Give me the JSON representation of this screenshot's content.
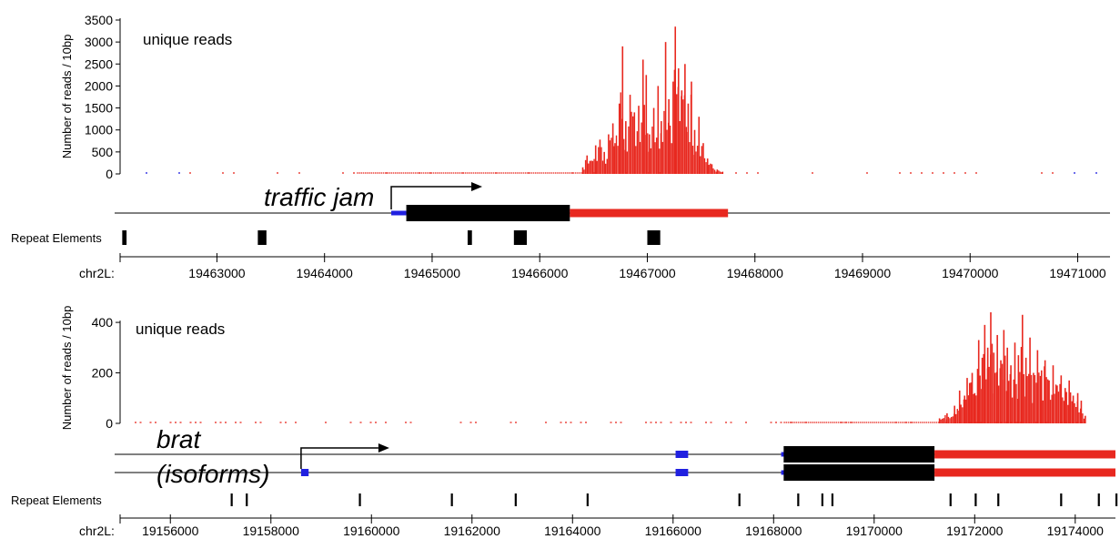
{
  "chart_data": [
    {
      "type": "bar",
      "panel_label": "unique reads",
      "ylabel": "Number of reads / 10bp",
      "yticks": [
        0,
        500,
        1000,
        1500,
        2000,
        2500,
        3000,
        3500
      ],
      "ylim": [
        0,
        3500
      ],
      "xlim": [
        19462100,
        19471300
      ],
      "xticks": [
        19463000,
        19464000,
        19465000,
        19466000,
        19467000,
        19468000,
        19469000,
        19470000,
        19471000
      ],
      "chrom_label": "chr2L:",
      "repeat_label": "Repeat Elements",
      "colors": {
        "plus_strand": "#e8281f",
        "minus_strand": "#2020e0",
        "cds": "#000000"
      },
      "genes": [
        {
          "name": "traffic jam",
          "strand": "+",
          "tss": 19464620,
          "transcripts": [
            {
              "utr5": [
                19464620,
                19464760
              ],
              "cds": [
                19464760,
                19466280
              ],
              "utr3": [
                19466280,
                19467750
              ]
            }
          ]
        }
      ],
      "peak_profile": [
        {
          "x": 19466400,
          "y": 150
        },
        {
          "x": 19466440,
          "y": 420
        },
        {
          "x": 19466480,
          "y": 300
        },
        {
          "x": 19466520,
          "y": 650
        },
        {
          "x": 19466560,
          "y": 780
        },
        {
          "x": 19466600,
          "y": 500
        },
        {
          "x": 19466640,
          "y": 900
        },
        {
          "x": 19466680,
          "y": 1150
        },
        {
          "x": 19466700,
          "y": 700
        },
        {
          "x": 19466740,
          "y": 1600
        },
        {
          "x": 19466770,
          "y": 2900
        },
        {
          "x": 19466800,
          "y": 1200
        },
        {
          "x": 19466840,
          "y": 1800
        },
        {
          "x": 19466880,
          "y": 1400
        },
        {
          "x": 19466920,
          "y": 1550
        },
        {
          "x": 19466960,
          "y": 2600
        },
        {
          "x": 19466990,
          "y": 2250
        },
        {
          "x": 19467020,
          "y": 900
        },
        {
          "x": 19467060,
          "y": 1500
        },
        {
          "x": 19467100,
          "y": 2000
        },
        {
          "x": 19467130,
          "y": 1200
        },
        {
          "x": 19467170,
          "y": 3000
        },
        {
          "x": 19467200,
          "y": 1700
        },
        {
          "x": 19467240,
          "y": 2100
        },
        {
          "x": 19467260,
          "y": 3350
        },
        {
          "x": 19467290,
          "y": 2400
        },
        {
          "x": 19467320,
          "y": 1900
        },
        {
          "x": 19467350,
          "y": 2500
        },
        {
          "x": 19467380,
          "y": 1600
        },
        {
          "x": 19467410,
          "y": 2100
        },
        {
          "x": 19467440,
          "y": 1000
        },
        {
          "x": 19467480,
          "y": 1300
        },
        {
          "x": 19467520,
          "y": 700
        },
        {
          "x": 19467560,
          "y": 350
        },
        {
          "x": 19467600,
          "y": 220
        },
        {
          "x": 19467650,
          "y": 100
        },
        {
          "x": 19467700,
          "y": 50
        }
      ],
      "repeat_elements": [
        {
          "x": 19462120,
          "len": 40
        },
        {
          "x": 19463380,
          "len": 80
        },
        {
          "x": 19465330,
          "len": 40
        },
        {
          "x": 19465760,
          "len": 120
        },
        {
          "x": 19467000,
          "len": 120
        }
      ]
    },
    {
      "type": "bar",
      "panel_label": "unique reads",
      "ylabel": "Number of reads / 10bp",
      "yticks": [
        0,
        200,
        400
      ],
      "ylim": [
        0,
        440
      ],
      "xlim": [
        19155000,
        19174800
      ],
      "xticks": [
        19156000,
        19158000,
        19160000,
        19162000,
        19164000,
        19166000,
        19168000,
        19170000,
        19172000,
        19174000
      ],
      "chrom_label": "chr2L:",
      "repeat_label": "Repeat Elements",
      "colors": {
        "plus_strand": "#e8281f",
        "minus_strand": "#2020e0",
        "cds": "#000000"
      },
      "genes": [
        {
          "name": "brat",
          "subtitle": "(isoforms)",
          "strand": "+",
          "tss": 19158600,
          "transcripts": [
            {
              "utr5_exons": [
                [
                  19166050,
                  19166300
                ]
              ],
              "utr5": [
                19168150,
                19168200
              ],
              "cds": [
                19168200,
                19171200
              ],
              "utr3": [
                19171200,
                19174800
              ]
            },
            {
              "utr5_exons": [
                [
                  19158600,
                  19158750
                ],
                [
                  19166050,
                  19166300
                ]
              ],
              "utr5": [
                19168150,
                19168200
              ],
              "cds": [
                19168200,
                19171200
              ],
              "utr3": [
                19171200,
                19174800
              ]
            }
          ]
        }
      ],
      "peak_profile": [
        {
          "x": 19171300,
          "y": 20
        },
        {
          "x": 19171450,
          "y": 40
        },
        {
          "x": 19171600,
          "y": 70
        },
        {
          "x": 19171700,
          "y": 130
        },
        {
          "x": 19171800,
          "y": 110
        },
        {
          "x": 19171850,
          "y": 180
        },
        {
          "x": 19171900,
          "y": 160
        },
        {
          "x": 19171950,
          "y": 200
        },
        {
          "x": 19172000,
          "y": 120
        },
        {
          "x": 19172080,
          "y": 330
        },
        {
          "x": 19172150,
          "y": 260
        },
        {
          "x": 19172200,
          "y": 390
        },
        {
          "x": 19172260,
          "y": 300
        },
        {
          "x": 19172320,
          "y": 440
        },
        {
          "x": 19172380,
          "y": 280
        },
        {
          "x": 19172450,
          "y": 350
        },
        {
          "x": 19172520,
          "y": 250
        },
        {
          "x": 19172580,
          "y": 370
        },
        {
          "x": 19172650,
          "y": 300
        },
        {
          "x": 19172720,
          "y": 230
        },
        {
          "x": 19172800,
          "y": 320
        },
        {
          "x": 19172870,
          "y": 270
        },
        {
          "x": 19172950,
          "y": 430
        },
        {
          "x": 19173020,
          "y": 260
        },
        {
          "x": 19173100,
          "y": 340
        },
        {
          "x": 19173170,
          "y": 200
        },
        {
          "x": 19173250,
          "y": 290
        },
        {
          "x": 19173330,
          "y": 210
        },
        {
          "x": 19173400,
          "y": 250
        },
        {
          "x": 19173480,
          "y": 170
        },
        {
          "x": 19173560,
          "y": 230
        },
        {
          "x": 19173640,
          "y": 150
        },
        {
          "x": 19173720,
          "y": 190
        },
        {
          "x": 19173800,
          "y": 140
        },
        {
          "x": 19173880,
          "y": 170
        },
        {
          "x": 19173960,
          "y": 110
        },
        {
          "x": 19174050,
          "y": 120
        },
        {
          "x": 19174120,
          "y": 90
        },
        {
          "x": 19174200,
          "y": 30
        }
      ],
      "repeat_elements": [
        {
          "x": 19157200,
          "len": 20
        },
        {
          "x": 19157500,
          "len": 20
        },
        {
          "x": 19159750,
          "len": 40
        },
        {
          "x": 19161580,
          "len": 40
        },
        {
          "x": 19162850,
          "len": 20
        },
        {
          "x": 19164280,
          "len": 20
        },
        {
          "x": 19167300,
          "len": 20
        },
        {
          "x": 19168470,
          "len": 20
        },
        {
          "x": 19168950,
          "len": 20
        },
        {
          "x": 19169150,
          "len": 20
        },
        {
          "x": 19171500,
          "len": 40
        },
        {
          "x": 19172000,
          "len": 20
        },
        {
          "x": 19172450,
          "len": 20
        },
        {
          "x": 19173700,
          "len": 20
        },
        {
          "x": 19174450,
          "len": 20
        },
        {
          "x": 19174800,
          "len": 30
        }
      ]
    }
  ]
}
